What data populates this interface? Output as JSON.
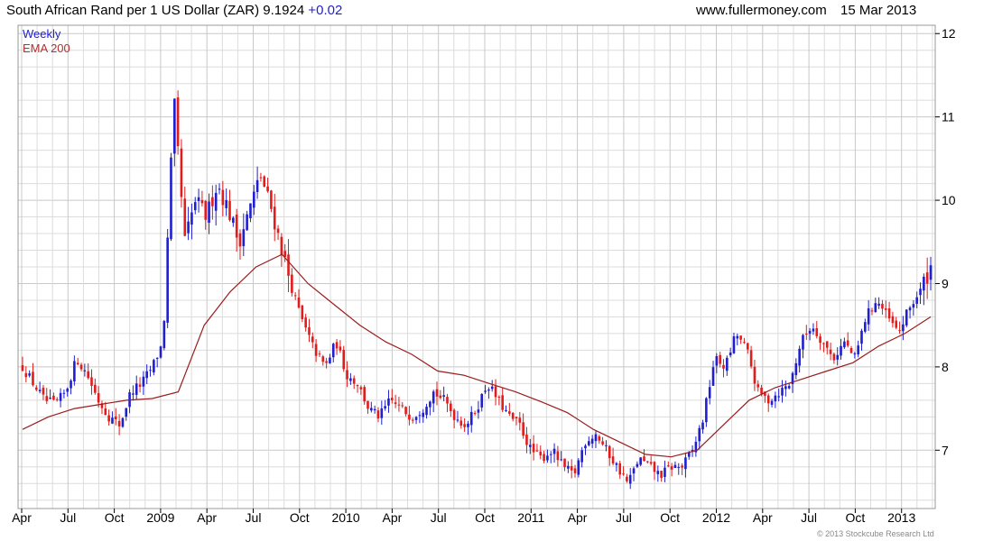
{
  "header": {
    "title": "South African Rand per 1 US Dollar (ZAR)",
    "last": "9.1924",
    "change": "+0.02",
    "site": "www.fullermoney.com",
    "date": "15 Mar 2013"
  },
  "footer": {
    "copyright": "© 2013 Stockcube Research Ltd"
  },
  "colors": {
    "up": "#1f1fd0",
    "down": "#e21b1b",
    "ema": "#9b1c1c",
    "grid": "#dcdcdc"
  },
  "chart_data": {
    "type": "candlestick",
    "interval_label": "Weekly",
    "legend": [
      "Weekly",
      "EMA 200"
    ],
    "ylim": [
      6.3,
      12.1
    ],
    "yticks": [
      7,
      8,
      9,
      10,
      11,
      12
    ],
    "x_ticks": [
      "Apr",
      "Jul",
      "Oct",
      "2009",
      "Apr",
      "Jul",
      "Oct",
      "2010",
      "Apr",
      "Jul",
      "Oct",
      "2011",
      "Apr",
      "Jul",
      "Oct",
      "2012",
      "Apr",
      "Jul",
      "Oct",
      "2013"
    ],
    "close_path": [
      8.0,
      7.8,
      7.6,
      7.55,
      7.7,
      8.1,
      7.9,
      7.6,
      7.4,
      7.3,
      7.7,
      7.8,
      8.0,
      8.3,
      11.2,
      9.5,
      10.0,
      9.8,
      10.2,
      9.9,
      9.5,
      9.9,
      10.3,
      9.9,
      9.4,
      8.9,
      8.5,
      8.2,
      8.0,
      8.3,
      7.9,
      7.8,
      7.5,
      7.4,
      7.6,
      7.5,
      7.4,
      7.5,
      7.7,
      7.6,
      7.4,
      7.3,
      7.5,
      7.8,
      7.6,
      7.4,
      7.3,
      7.0,
      6.9,
      7.0,
      6.8,
      6.7,
      7.1,
      7.2,
      7.0,
      6.8,
      6.6,
      6.9,
      6.8,
      6.7,
      6.8,
      6.8,
      7.0,
      7.4,
      8.1,
      8.0,
      8.4,
      8.2,
      7.7,
      7.6,
      7.7,
      7.8,
      8.3,
      8.5,
      8.3,
      8.1,
      8.3,
      8.1,
      8.6,
      8.8,
      8.6,
      8.4,
      8.7,
      8.9,
      9.2
    ],
    "ema200": [
      7.25,
      7.4,
      7.5,
      7.55,
      7.6,
      7.62,
      7.7,
      8.5,
      8.9,
      9.2,
      9.35,
      9.0,
      8.75,
      8.5,
      8.3,
      8.15,
      7.95,
      7.9,
      7.8,
      7.7,
      7.58,
      7.45,
      7.25,
      7.1,
      6.95,
      6.92,
      7.0,
      7.3,
      7.6,
      7.75,
      7.85,
      7.95,
      8.05,
      8.25,
      8.4,
      8.6
    ]
  }
}
